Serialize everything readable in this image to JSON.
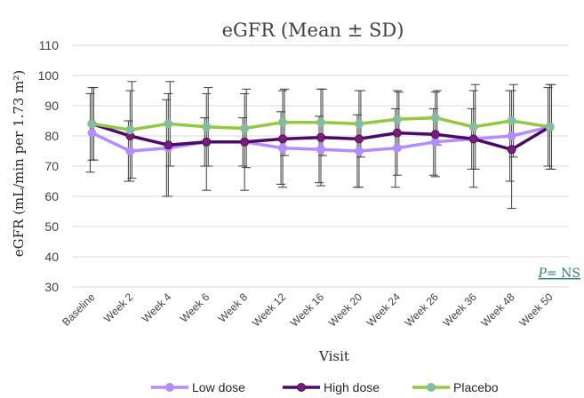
{
  "chart_data": {
    "type": "line",
    "title": "eGFR (Mean ± SD)",
    "ylabel": "eGFR (mL/min per 1.73 m²)",
    "xlabel": "Visit",
    "categories": [
      "Baseline",
      "Week 2",
      "Week 4",
      "Week 6",
      "Week 8",
      "Week 12",
      "Week 16",
      "Week 20",
      "Week 24",
      "Week 26",
      "Week 36",
      "Week 48",
      "Week 50"
    ],
    "ylim": [
      30,
      110
    ],
    "yticks": [
      30,
      40,
      50,
      60,
      70,
      80,
      90,
      100,
      110
    ],
    "grid": true,
    "legend_position": "bottom",
    "annotation": {
      "p_label": "P",
      "p_rest": "= NS"
    },
    "series": [
      {
        "name": "Low dose",
        "color": "#b48cff",
        "marker_fill": "#b48cff",
        "values": [
          81,
          75,
          76,
          78,
          78,
          76,
          75.5,
          75,
          76,
          78,
          79,
          80,
          83
        ],
        "sd": [
          13,
          10,
          16,
          8,
          8,
          12,
          11,
          12,
          13,
          11,
          10,
          15,
          13
        ]
      },
      {
        "name": "High dose",
        "color": "#4b0a68",
        "marker_fill": "#7a1e7a",
        "values": [
          84,
          80,
          77,
          78,
          78,
          79,
          79.5,
          79,
          81,
          80.5,
          79,
          75.5,
          83
        ],
        "sd": [
          12,
          15,
          17,
          16,
          16,
          16,
          16,
          16,
          14,
          14,
          16,
          19.5,
          14
        ]
      },
      {
        "name": "Placebo",
        "color": "#92c940",
        "marker_fill": "#7fb8c4",
        "values": [
          84,
          82,
          84,
          83,
          82.5,
          84.5,
          84.5,
          84,
          85.5,
          86,
          83,
          85,
          83
        ],
        "sd": [
          12,
          16,
          14,
          13,
          13,
          11,
          11,
          11,
          9,
          9,
          14,
          12,
          14
        ]
      }
    ]
  }
}
